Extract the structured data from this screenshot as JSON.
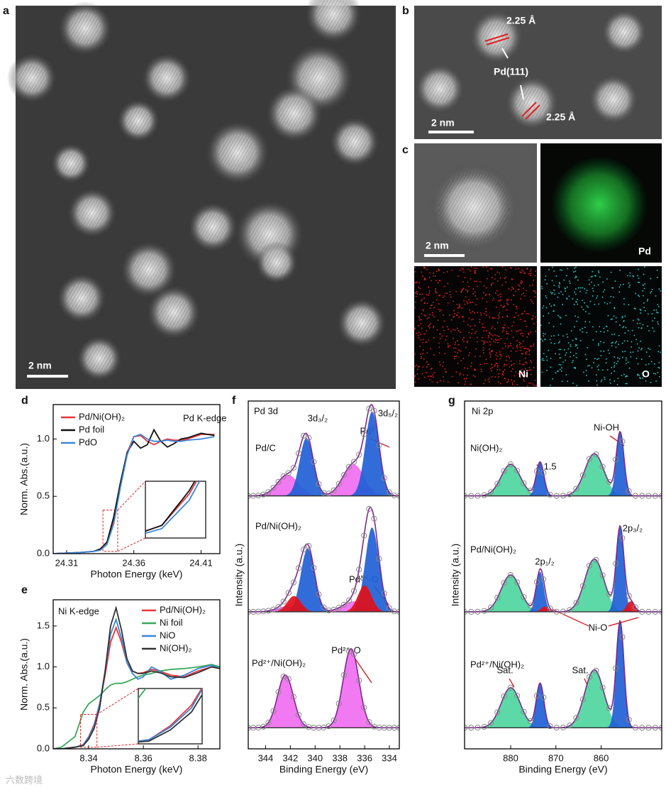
{
  "images": {
    "a": {
      "panel": "a",
      "scale_bar": "2 nm"
    },
    "b": {
      "panel": "b",
      "scale_bar": "2 nm",
      "spacing_top": "2.25 Å",
      "spacing_bottom": "2.25 Å",
      "plane": "Pd(111)"
    },
    "c": {
      "panel": "c",
      "scale_bar": "2 nm",
      "maps": [
        "Pd",
        "Ni",
        "O"
      ]
    }
  },
  "watermark": "六数跨境",
  "chart_data": [
    {
      "type": "line",
      "panel": "d",
      "xlabel": "Photon Energy (keV)",
      "ylabel": "Norm. Abs.(a.u.)",
      "annotations": [
        "Pd K-edge"
      ],
      "x": [
        24.3,
        24.32,
        24.33,
        24.335,
        24.34,
        24.345,
        24.35,
        24.355,
        24.36,
        24.365,
        24.37,
        24.375,
        24.38,
        24.385,
        24.39,
        24.395,
        24.4,
        24.41,
        24.42
      ],
      "series": [
        {
          "name": "Pd/Ni(OH)₂",
          "color": "#e8363c",
          "values": [
            0,
            0.01,
            0.02,
            0.04,
            0.1,
            0.3,
            0.6,
            0.88,
            1.02,
            1.03,
            0.98,
            0.95,
            0.98,
            1.0,
            0.99,
            0.99,
            1.0,
            1.04,
            1.04
          ]
        },
        {
          "name": "Pd foil",
          "color": "#111111",
          "values": [
            0,
            0.01,
            0.02,
            0.04,
            0.1,
            0.32,
            0.62,
            0.88,
            0.98,
            0.92,
            0.95,
            1.08,
            0.98,
            0.93,
            0.96,
            1.0,
            1.01,
            1.05,
            1.03
          ]
        },
        {
          "name": "PdO",
          "color": "#3a86d8",
          "values": [
            0,
            0.01,
            0.02,
            0.03,
            0.08,
            0.26,
            0.58,
            0.86,
            1.02,
            1.04,
            1.0,
            0.98,
            0.98,
            0.99,
            0.98,
            0.98,
            0.99,
            1.0,
            1.02
          ]
        }
      ],
      "xlim": [
        24.3,
        24.424
      ],
      "ylim": [
        0,
        1.3
      ],
      "xticks": [
        24.31,
        24.36,
        24.41
      ],
      "yticks": [
        {
          "value": 0,
          "label": "0.0"
        },
        0.5,
        {
          "value": 1,
          "label": "1.0"
        }
      ],
      "inset_xlim": [
        24.337,
        24.348
      ],
      "inset_ylim": [
        0.02,
        0.38
      ]
    },
    {
      "type": "line",
      "panel": "e",
      "xlabel": "Photon Energy (keV)",
      "ylabel": "Norm. Abs.(a.u.)",
      "annotations": [
        "Ni K-edge"
      ],
      "x": [
        8.327,
        8.33,
        8.335,
        8.338,
        8.34,
        8.342,
        8.344,
        8.346,
        8.348,
        8.35,
        8.352,
        8.354,
        8.356,
        8.358,
        8.36,
        8.363,
        8.366,
        8.37,
        8.375,
        8.38,
        8.385,
        8.388
      ],
      "series": [
        {
          "name": "Pd/Ni(OH)₂",
          "color": "#e8363c",
          "values": [
            0,
            0,
            0.02,
            0.05,
            0.15,
            0.3,
            0.55,
            0.9,
            1.3,
            1.48,
            1.3,
            1.05,
            0.95,
            0.92,
            0.93,
            0.97,
            0.95,
            0.9,
            0.88,
            0.95,
            1.0,
            0.98
          ]
        },
        {
          "name": "Ni foil",
          "color": "#3aa85a",
          "values": [
            0,
            0.02,
            0.15,
            0.45,
            0.55,
            0.6,
            0.65,
            0.72,
            0.78,
            0.8,
            0.8,
            0.82,
            0.85,
            0.88,
            0.9,
            0.92,
            0.95,
            0.97,
            0.98,
            1.0,
            1.03,
            1.0
          ]
        },
        {
          "name": "NiO",
          "color": "#3a86d8",
          "values": [
            0,
            0,
            0.02,
            0.05,
            0.14,
            0.28,
            0.55,
            0.95,
            1.4,
            1.58,
            1.35,
            1.05,
            0.92,
            0.85,
            0.88,
            1.0,
            0.95,
            0.85,
            0.9,
            0.98,
            1.02,
            0.98
          ]
        },
        {
          "name": "Ni(OH)₂",
          "color": "#333333",
          "values": [
            0,
            0,
            0.02,
            0.04,
            0.12,
            0.25,
            0.5,
            0.95,
            1.5,
            1.72,
            1.45,
            1.1,
            0.95,
            0.92,
            0.92,
            0.95,
            0.93,
            0.88,
            0.87,
            0.93,
            1.0,
            0.98
          ]
        }
      ],
      "xlim": [
        8.327,
        8.388
      ],
      "ylim": [
        0,
        1.82
      ],
      "xticks": [
        8.34,
        8.36,
        8.38
      ],
      "yticks": [
        {
          "value": 0,
          "label": "0.0"
        },
        0.5,
        {
          "value": 1,
          "label": "1.0"
        },
        1.5
      ],
      "inset_xlim": [
        8.337,
        8.343
      ],
      "inset_ylim": [
        0.02,
        0.42
      ]
    },
    {
      "type": "spectrum",
      "panel": "f",
      "xlabel": "Binding Energy (eV)",
      "ylabel": "Intensity (a.u.)",
      "annotations": [
        "Pd 3d",
        "3d₃/₂",
        "3d₅/₂",
        "Pd⁰",
        "Pdᵟ⁺-O",
        "Pd²⁺-O"
      ],
      "xlim": [
        345.4,
        333.2
      ],
      "ylim": [
        0,
        3.3
      ],
      "xticks": [
        344,
        342,
        340,
        338,
        336,
        334
      ],
      "spectra": [
        {
          "name": "Pd/C",
          "baseline": 2.4,
          "peaks": [
            {
              "center": 342.2,
              "height": 0.2,
              "fwhm": 2.0,
              "color": "#f06ef0"
            },
            {
              "center": 336.9,
              "height": 0.3,
              "fwhm": 2.0,
              "color": "#f06ef0"
            },
            {
              "center": 340.7,
              "height": 0.55,
              "fwhm": 1.3,
              "color": "#1f5fd6"
            },
            {
              "center": 335.4,
              "height": 0.8,
              "fwhm": 1.3,
              "color": "#1f5fd6"
            }
          ]
        },
        {
          "name": "Pd/Ni(OH)₂",
          "baseline": 1.3,
          "peaks": [
            {
              "center": 342.0,
              "height": 0.06,
              "fwhm": 2.2,
              "color": "#f06ef0"
            },
            {
              "center": 336.8,
              "height": 0.1,
              "fwhm": 2.2,
              "color": "#f06ef0"
            },
            {
              "center": 340.6,
              "height": 0.6,
              "fwhm": 1.3,
              "color": "#1f5fd6"
            },
            {
              "center": 335.4,
              "height": 0.8,
              "fwhm": 1.3,
              "color": "#1f5fd6"
            },
            {
              "center": 341.7,
              "height": 0.15,
              "fwhm": 1.3,
              "color": "#e0101a"
            },
            {
              "center": 336.0,
              "height": 0.25,
              "fwhm": 1.3,
              "color": "#e0101a"
            }
          ]
        },
        {
          "name": "Pd²⁺/Ni(OH)₂",
          "baseline": 0.2,
          "peaks": [
            {
              "center": 342.4,
              "height": 0.5,
              "fwhm": 1.5,
              "color": "#f06ef0"
            },
            {
              "center": 337.1,
              "height": 0.75,
              "fwhm": 1.5,
              "color": "#f06ef0"
            }
          ]
        }
      ]
    },
    {
      "type": "spectrum",
      "panel": "g",
      "xlabel": "Binding Energy (eV)",
      "ylabel": "Intensity (a.u.)",
      "annotations": [
        "Ni 2p",
        "Ni-OH",
        "× 1.5",
        "2p₃/₂",
        "2p₁/₂",
        "Ni-O",
        "Sat.",
        "Sat."
      ],
      "xlim": [
        890.2,
        846.6
      ],
      "ylim": [
        0,
        3.3
      ],
      "xticks": [
        880,
        870,
        860
      ],
      "spectra": [
        {
          "name": "Ni(OH)₂",
          "baseline": 2.4,
          "peaks": [
            {
              "center": 880,
              "height": 0.3,
              "fwhm": 5,
              "color": "#4fd6a0"
            },
            {
              "center": 873.5,
              "height": 0.32,
              "fwhm": 2,
              "color": "#1f5fd6"
            },
            {
              "center": 861.5,
              "height": 0.4,
              "fwhm": 5,
              "color": "#4fd6a0"
            },
            {
              "center": 855.8,
              "height": 0.6,
              "fwhm": 2,
              "color": "#1f5fd6"
            }
          ]
        },
        {
          "name": "Pd/Ni(OH)₂",
          "baseline": 1.3,
          "peaks": [
            {
              "center": 880,
              "height": 0.35,
              "fwhm": 5,
              "color": "#4fd6a0"
            },
            {
              "center": 873.5,
              "height": 0.38,
              "fwhm": 2,
              "color": "#1f5fd6"
            },
            {
              "center": 861.5,
              "height": 0.5,
              "fwhm": 5,
              "color": "#4fd6a0"
            },
            {
              "center": 855.8,
              "height": 0.8,
              "fwhm": 2,
              "color": "#1f5fd6"
            },
            {
              "center": 872.5,
              "height": 0.05,
              "fwhm": 2,
              "color": "#e0101a"
            },
            {
              "center": 853.5,
              "height": 0.1,
              "fwhm": 2,
              "color": "#e0101a"
            }
          ]
        },
        {
          "name": "Pd²⁺/Ni(OH)₂",
          "baseline": 0.2,
          "peaks": [
            {
              "center": 880,
              "height": 0.38,
              "fwhm": 5,
              "color": "#4fd6a0"
            },
            {
              "center": 873.5,
              "height": 0.42,
              "fwhm": 2,
              "color": "#1f5fd6"
            },
            {
              "center": 861.5,
              "height": 0.55,
              "fwhm": 5,
              "color": "#4fd6a0"
            },
            {
              "center": 855.8,
              "height": 1.0,
              "fwhm": 2,
              "color": "#1f5fd6"
            }
          ]
        }
      ]
    }
  ]
}
